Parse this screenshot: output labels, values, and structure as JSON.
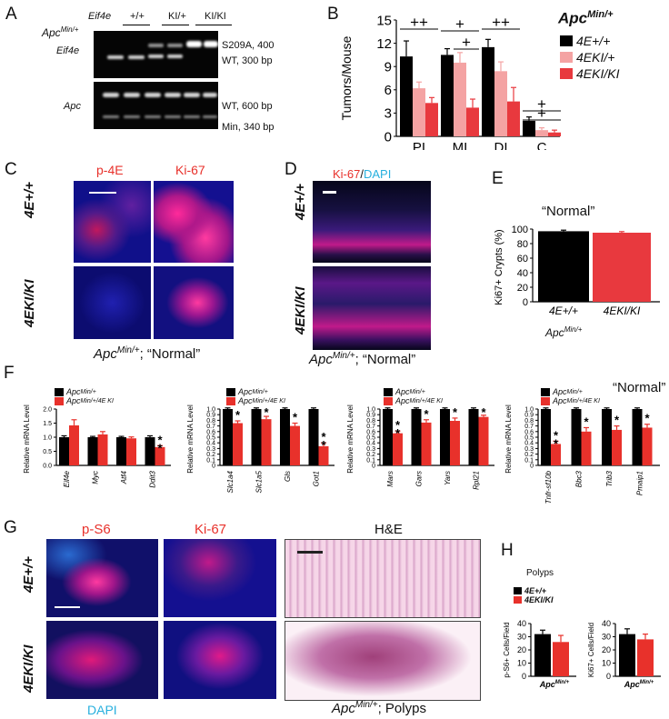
{
  "colors": {
    "wt": "#000000",
    "ki_het": "#f4a3a3",
    "ki_hom": "#e8393e",
    "red": "#e8312b",
    "cyan": "#27b0de"
  },
  "panelA": {
    "label": "A",
    "gene_row_label": "Eif4e",
    "genotypes": [
      "+/+",
      "KI/+",
      "KI/KI"
    ],
    "cross_label": "Apc",
    "cross_sup": "Min/+",
    "gel1_label": "Eif4e",
    "gel2_label": "Apc",
    "band1a": "S209A, 400",
    "band1b": "WT, 300 bp",
    "band2a": "WT, 600 bp",
    "band2b": "Min, 340 bp"
  },
  "panelB": {
    "label": "B",
    "legend_title": "Apc",
    "legend_title_sup": "Min/+",
    "legend": [
      "4E+/+",
      "4EKI/+",
      "4EKI/KI"
    ],
    "sig": [
      "++",
      "+",
      "+",
      "++",
      "+",
      "+"
    ],
    "chart_data": {
      "type": "bar",
      "ylabel": "Tumors/Mouse",
      "ylim": [
        0,
        15
      ],
      "yticks": [
        0,
        3,
        6,
        9,
        12,
        15
      ],
      "categories": [
        "PI",
        "MI",
        "DI",
        "C"
      ],
      "series": [
        {
          "name": "4E+/+",
          "values": [
            10.3,
            10.5,
            11.5,
            2.0
          ],
          "errors": [
            2.0,
            0.8,
            1.0,
            0.5
          ]
        },
        {
          "name": "4EKI/+",
          "values": [
            6.2,
            9.5,
            8.4,
            0.8
          ],
          "errors": [
            0.8,
            1.3,
            1.2,
            0.3
          ]
        },
        {
          "name": "4EKI/KI",
          "values": [
            4.3,
            3.7,
            4.5,
            0.5
          ],
          "errors": [
            0.7,
            1.1,
            1.8,
            0.3
          ]
        }
      ]
    }
  },
  "panelC": {
    "label": "C",
    "col1": "p-4E",
    "col2": "Ki-67",
    "row1": "4E+/+",
    "row2": "4EKI/KI",
    "caption_a": "Apc",
    "caption_sup": "Min/+",
    "caption_b": "; “Normal”"
  },
  "panelD": {
    "label": "D",
    "stain1": "Ki-67",
    "sep": "/",
    "stain2": "DAPI",
    "row1": "4E+/+",
    "row2": "4EKI/KI",
    "caption_a": "Apc",
    "caption_sup": "Min/+",
    "caption_b": "; “Normal”"
  },
  "panelE": {
    "label": "E",
    "title": "“Normal”",
    "xfoot": "Apc",
    "xfoot_sup": "Min/+",
    "chart_data": {
      "type": "bar",
      "ylabel": "Ki67+ Crypts (%)",
      "ylim": [
        0,
        100
      ],
      "yticks": [
        0,
        20,
        40,
        60,
        80,
        100
      ],
      "categories": [
        "4E+/+",
        "4EKI/KI"
      ],
      "values": [
        97,
        95
      ],
      "errors": [
        1.5,
        1.5
      ]
    }
  },
  "panelF": {
    "label": "F",
    "normal": "“Normal”",
    "legend": [
      "Apc",
      "Apc"
    ],
    "legend_sup": [
      "Min/+",
      "Min/+/4E KI"
    ],
    "chart_data": [
      {
        "type": "bar",
        "ylabel": "Relative mRNA Level",
        "ylim": [
          0,
          2.0
        ],
        "yticks": [
          0,
          0.5,
          1.0,
          1.5,
          2.0
        ],
        "categories": [
          "Eif4e",
          "Myc",
          "Atf4",
          "Ddit3"
        ],
        "series": [
          {
            "values": [
              1.0,
              1.0,
              1.0,
              1.0
            ],
            "errors": [
              0.05,
              0.03,
              0.03,
              0.05
            ]
          },
          {
            "values": [
              1.42,
              1.1,
              0.96,
              0.65
            ],
            "errors": [
              0.2,
              0.1,
              0.05,
              0.05
            ]
          }
        ],
        "stars": [
          "",
          "",
          "",
          "**"
        ]
      },
      {
        "type": "bar",
        "ylabel": "Relative mRNA Level",
        "ylim": [
          0,
          1.0
        ],
        "yticks": [
          0,
          0.1,
          0.2,
          0.3,
          0.4,
          0.5,
          0.6,
          0.7,
          0.8,
          0.9,
          1.0
        ],
        "categories": [
          "Slc1a4",
          "Slc1a5",
          "Gls",
          "Got1"
        ],
        "series": [
          {
            "values": [
              1.0,
              1.0,
              1.0,
              1.0
            ],
            "errors": [
              0.02,
              0.02,
              0.02,
              0.02
            ]
          },
          {
            "values": [
              0.75,
              0.82,
              0.7,
              0.34
            ],
            "errors": [
              0.04,
              0.05,
              0.05,
              0.06
            ]
          }
        ],
        "stars": [
          "*",
          "*",
          "*",
          "**"
        ]
      },
      {
        "type": "bar",
        "ylabel": "Relative mRNA Level",
        "ylim": [
          0,
          1.0
        ],
        "yticks": [
          0,
          0.1,
          0.2,
          0.3,
          0.4,
          0.5,
          0.6,
          0.7,
          0.8,
          0.9,
          1.0
        ],
        "categories": [
          "Mars",
          "Gars",
          "Yars",
          "Rpl21"
        ],
        "series": [
          {
            "values": [
              1.0,
              1.0,
              1.0,
              1.0
            ],
            "errors": [
              0.02,
              0.02,
              0.02,
              0.02
            ]
          },
          {
            "values": [
              0.57,
              0.76,
              0.79,
              0.86
            ],
            "errors": [
              0.04,
              0.05,
              0.05,
              0.03
            ]
          }
        ],
        "stars": [
          "**",
          "*",
          "*",
          "*"
        ]
      },
      {
        "type": "bar",
        "ylabel": "Relative mRNA Level",
        "ylim": [
          0,
          1.0
        ],
        "yticks": [
          0,
          0.1,
          0.2,
          0.3,
          0.4,
          0.5,
          0.6,
          0.7,
          0.8,
          0.9,
          1.0
        ],
        "categories": [
          "Tnfr-sf10b",
          "Bbc3",
          "Trib3",
          "Pmaip1"
        ],
        "series": [
          {
            "values": [
              1.0,
              1.0,
              1.0,
              1.0
            ],
            "errors": [
              0.02,
              0.02,
              0.02,
              0.02
            ]
          },
          {
            "values": [
              0.38,
              0.6,
              0.63,
              0.67
            ],
            "errors": [
              0.05,
              0.07,
              0.07,
              0.06
            ]
          }
        ],
        "stars": [
          "**",
          "*",
          "*",
          "*"
        ]
      }
    ]
  },
  "panelG": {
    "label": "G",
    "col1": "p-S6",
    "col2": "Ki-67",
    "col3": "H&E",
    "row1": "4E+/+",
    "row2": "4EKI/KI",
    "dapi": "DAPI",
    "caption_a": "Apc",
    "caption_sup": "Min/+",
    "caption_b": "; Polyps"
  },
  "panelH": {
    "label": "H",
    "title": "Polyps",
    "legend": [
      "4E+/+",
      "4EKI/KI"
    ],
    "xfoot": "Apc",
    "xfoot_sup": "Min/+",
    "chart_data": [
      {
        "type": "bar",
        "ylabel": "p-S6+ Cells/Field",
        "ylim": [
          0,
          40
        ],
        "yticks": [
          0,
          10,
          20,
          30,
          40
        ],
        "categories": [
          "4E+/+",
          "4EKI/KI"
        ],
        "values": [
          32,
          26
        ],
        "errors": [
          3,
          5
        ]
      },
      {
        "type": "bar",
        "ylabel": "Ki67+ Cells/Field",
        "ylim": [
          0,
          40
        ],
        "yticks": [
          0,
          10,
          20,
          30,
          40
        ],
        "categories": [
          "4E+/+",
          "4EKI/KI"
        ],
        "values": [
          32,
          28
        ],
        "errors": [
          4,
          4
        ]
      }
    ]
  }
}
